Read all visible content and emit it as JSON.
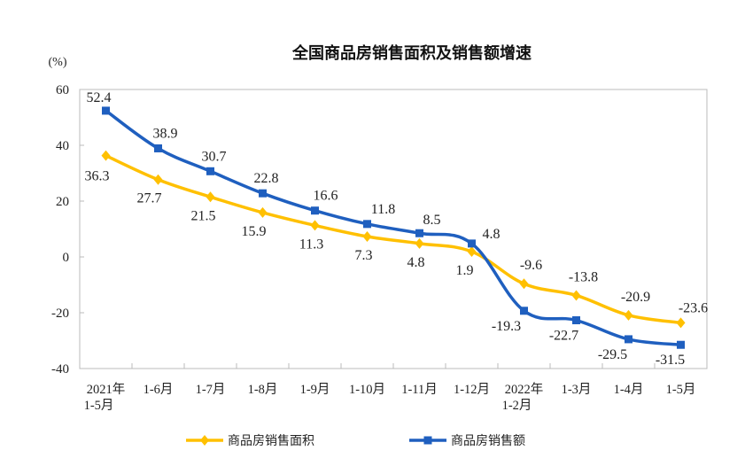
{
  "chart_data": {
    "type": "line",
    "title": "全国商品房销售面积及销售额增速",
    "ylabel": "(%)",
    "ylim": [
      -40,
      60
    ],
    "yticks": [
      60,
      40,
      20,
      0,
      -20,
      -40
    ],
    "grid": false,
    "legend_position": "bottom",
    "categories": [
      [
        "2021年",
        "1-5月"
      ],
      [
        "1-6月"
      ],
      [
        "1-7月"
      ],
      [
        "1-8月"
      ],
      [
        "1-9月"
      ],
      [
        "1-10月"
      ],
      [
        "1-11月"
      ],
      [
        "1-12月"
      ],
      [
        "2022年",
        "1-2月"
      ],
      [
        "1-3月"
      ],
      [
        "1-4月"
      ],
      [
        "1-5月"
      ]
    ],
    "series": [
      {
        "name": "商品房销售面积",
        "color": "#FFC000",
        "marker": "diamond",
        "values": [
          36.3,
          27.7,
          21.5,
          15.9,
          11.3,
          7.3,
          4.8,
          1.9,
          -9.6,
          -13.8,
          -20.9,
          -23.6
        ]
      },
      {
        "name": "商品房销售额",
        "color": "#1F5FBF",
        "marker": "square",
        "values": [
          52.4,
          38.9,
          30.7,
          22.8,
          16.6,
          11.8,
          8.5,
          4.8,
          -19.3,
          -22.7,
          -29.5,
          -31.5
        ]
      }
    ]
  }
}
